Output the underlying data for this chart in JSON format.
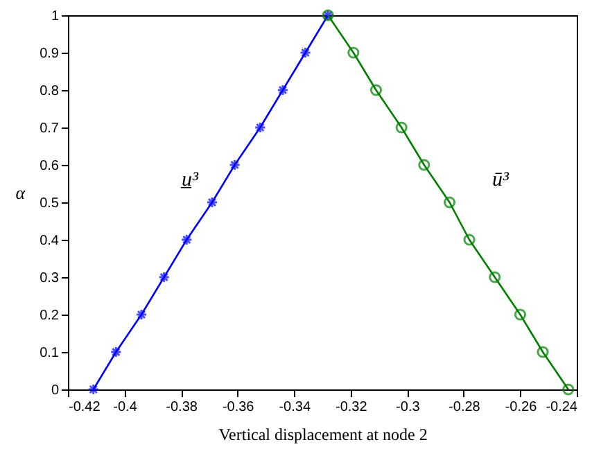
{
  "chart_data": {
    "type": "line",
    "xlabel": "Vertical displacement at node 2",
    "ylabel": "α",
    "xlim": [
      -0.42,
      -0.24
    ],
    "xticks": [
      -0.42,
      -0.4,
      -0.38,
      -0.36,
      -0.34,
      -0.32,
      -0.3,
      -0.28,
      -0.26,
      -0.24
    ],
    "ylim": [
      0,
      1
    ],
    "yticks": [
      0,
      0.1,
      0.2,
      0.3,
      0.4,
      0.5,
      0.6,
      0.7,
      0.8,
      0.9,
      1
    ],
    "grid": false,
    "line_style": "solid",
    "series": [
      {
        "color": "#0000ff",
        "marker": "cross",
        "x": [
          -0.411,
          -0.403,
          -0.394,
          -0.386,
          -0.378,
          -0.369,
          -0.361,
          -0.352,
          -0.344,
          -0.336,
          -0.328
        ],
        "values": [
          0,
          0.1,
          0.2,
          0.3,
          0.4,
          0.5,
          0.6,
          0.7,
          0.8,
          0.9,
          1
        ]
      },
      {
        "color": "#008000",
        "marker": "circle",
        "x": [
          -0.328,
          -0.319,
          -0.311,
          -0.302,
          -0.294,
          -0.285,
          -0.278,
          -0.269,
          -0.26,
          -0.252,
          -0.243
        ],
        "values": [
          1,
          0.9,
          0.8,
          0.7,
          0.6,
          0.5,
          0.4,
          0.3,
          0.2,
          0.1,
          0
        ]
      }
    ],
    "annotations": [
      "u̲³",
      "ū³"
    ]
  }
}
